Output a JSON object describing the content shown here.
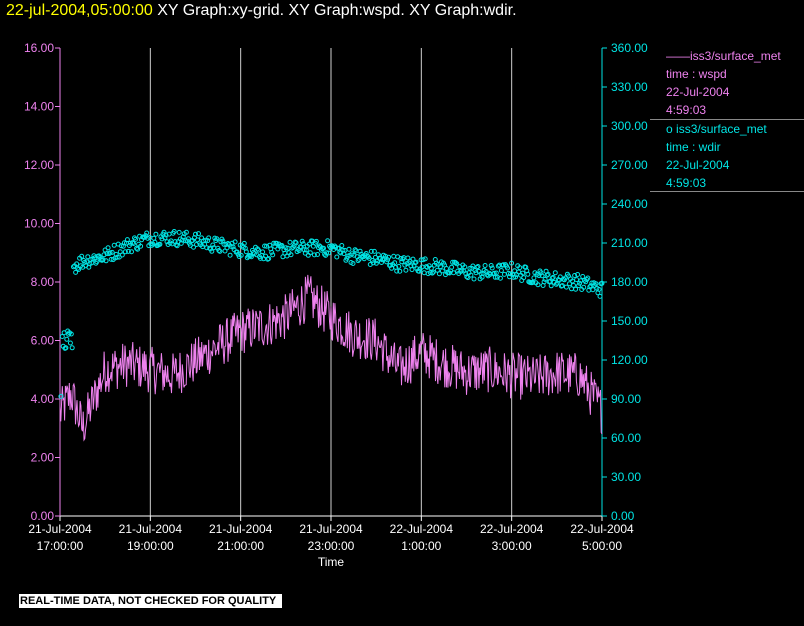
{
  "header": {
    "timestamp": "22-jul-2004,05:00:00",
    "graph_titles": "XY Graph:xy-grid.  XY Graph:wspd.  XY Graph:wdir."
  },
  "chart_data": {
    "type": "line",
    "xlabel": "Time",
    "x_ticks": [
      [
        "21-Jul-2004",
        "17:00:00"
      ],
      [
        "21-Jul-2004",
        "19:00:00"
      ],
      [
        "21-Jul-2004",
        "21:00:00"
      ],
      [
        "21-Jul-2004",
        "23:00:00"
      ],
      [
        "22-Jul-2004",
        "1:00:00"
      ],
      [
        "22-Jul-2004",
        "3:00:00"
      ],
      [
        "22-Jul-2004",
        "5:00:00"
      ]
    ],
    "xlim_hours_since_tick0": [
      0,
      12
    ],
    "y_left": {
      "ylim": [
        0,
        16
      ],
      "ticks": [
        "0.00",
        "2.00",
        "4.00",
        "6.00",
        "8.00",
        "10.00",
        "12.00",
        "14.00",
        "16.00"
      ],
      "color": "#ee82ee"
    },
    "y_right": {
      "ylim": [
        0,
        360
      ],
      "ticks": [
        "0.00",
        "30.00",
        "60.00",
        "90.00",
        "120.00",
        "150.00",
        "180.00",
        "210.00",
        "240.00",
        "270.00",
        "300.00",
        "330.00",
        "360.00"
      ],
      "color": "#00e5e5"
    },
    "grid": "vertical lines at each time tick",
    "series": [
      {
        "name": "wspd",
        "axis": "left",
        "style": "line",
        "color": "#ee82ee",
        "x_hours": [
          0,
          0.25,
          0.5,
          1,
          1.5,
          2,
          2.5,
          3,
          3.5,
          4,
          4.5,
          5,
          5.5,
          6,
          6.5,
          7,
          7.5,
          8,
          8.5,
          9,
          9.5,
          10,
          10.5,
          11,
          11.5,
          12
        ],
        "y": [
          3.5,
          4.2,
          3.0,
          5.0,
          5.2,
          5.0,
          4.8,
          5.3,
          5.8,
          6.3,
          6.5,
          6.8,
          7.5,
          6.8,
          6.2,
          6.0,
          5.0,
          5.6,
          5.2,
          4.9,
          5.0,
          4.8,
          4.7,
          4.9,
          4.8,
          3.6
        ]
      },
      {
        "name": "wdir",
        "axis": "right",
        "style": "markers",
        "color": "#00e5e5",
        "x_hours": [
          0,
          0.1,
          0.25,
          0.3,
          0.5,
          1,
          1.5,
          2,
          2.5,
          3,
          3.5,
          4,
          4.5,
          5,
          5.5,
          6,
          6.5,
          7,
          7.5,
          8,
          8.5,
          9,
          9.5,
          10,
          10.5,
          11,
          11.5,
          12
        ],
        "y": [
          92,
          140,
          135,
          192,
          196,
          200,
          208,
          214,
          214,
          212,
          208,
          205,
          203,
          205,
          206,
          206,
          200,
          198,
          194,
          193,
          191,
          188,
          187,
          189,
          184,
          182,
          180,
          174
        ]
      }
    ]
  },
  "legend": [
    {
      "symbol": "——",
      "source": "iss3/surface_met",
      "variable": "time : wspd",
      "date": "22-Jul-2004",
      "time": "4:59:03",
      "color": "#ee82ee"
    },
    {
      "symbol": "o",
      "source": "iss3/surface_met",
      "variable": "time : wdir",
      "date": "22-Jul-2004",
      "time": "4:59:03",
      "color": "#00e5e5"
    }
  ],
  "footer_note": "REAL-TIME DATA, NOT CHECKED FOR QUALITY"
}
